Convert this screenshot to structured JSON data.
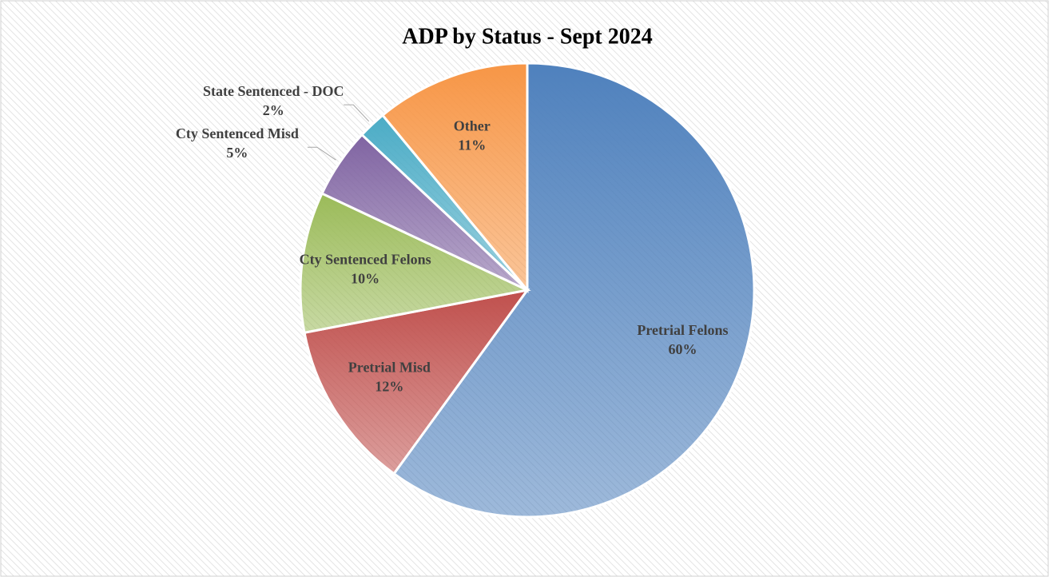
{
  "chart_data": {
    "type": "pie",
    "title": "ADP by Status - Sept 2024",
    "categories": [
      "Pretrial Felons",
      "Pretrial Misd",
      "Cty Sentenced Felons",
      "Cty Sentenced Misd",
      "State Sentenced - DOC",
      "Other"
    ],
    "values": [
      60,
      12,
      10,
      5,
      2,
      11
    ],
    "value_labels": [
      "60%",
      "12%",
      "10%",
      "5%",
      "2%",
      "11%"
    ],
    "colors": [
      "#4f81bd",
      "#c0504d",
      "#9bbb59",
      "#8064a2",
      "#4bacc6",
      "#f79646"
    ]
  }
}
